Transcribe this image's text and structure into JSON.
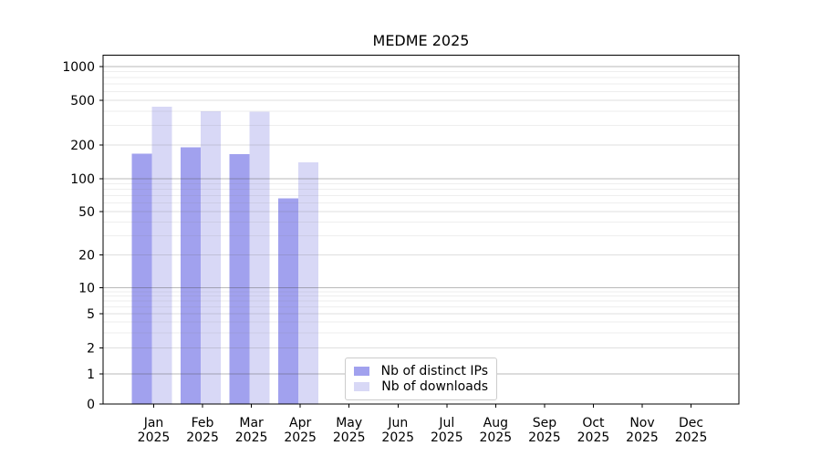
{
  "chart_data": {
    "type": "bar",
    "title": "MEDME 2025",
    "year_label": "2025",
    "categories": [
      "Jan",
      "Feb",
      "Mar",
      "Apr",
      "May",
      "Jun",
      "Jul",
      "Aug",
      "Sep",
      "Oct",
      "Nov",
      "Dec"
    ],
    "y_ticks": [
      0,
      1,
      2,
      5,
      10,
      20,
      50,
      100,
      200,
      500,
      1000
    ],
    "ylim": [
      0,
      1000
    ],
    "y_scale": "symlog",
    "grid": "both",
    "legend_position": "lower center-left inside plot",
    "series": [
      {
        "name": "Nb of distinct IPs",
        "color": "#a1a1ee",
        "values": [
          168,
          190,
          165,
          66,
          0,
          0,
          0,
          0,
          0,
          0,
          0,
          0
        ]
      },
      {
        "name": "Nb of downloads",
        "color": "#d8d8f6",
        "values": [
          440,
          400,
          395,
          140,
          0,
          0,
          0,
          0,
          0,
          0,
          0,
          0
        ]
      }
    ]
  },
  "colors": {
    "background": "#ffffff",
    "axis": "#000000",
    "text": "#000000",
    "major_grid": "#c3c3c3",
    "mid_grid": "#e0e0e0",
    "minor_grid": "#eeeeee"
  }
}
